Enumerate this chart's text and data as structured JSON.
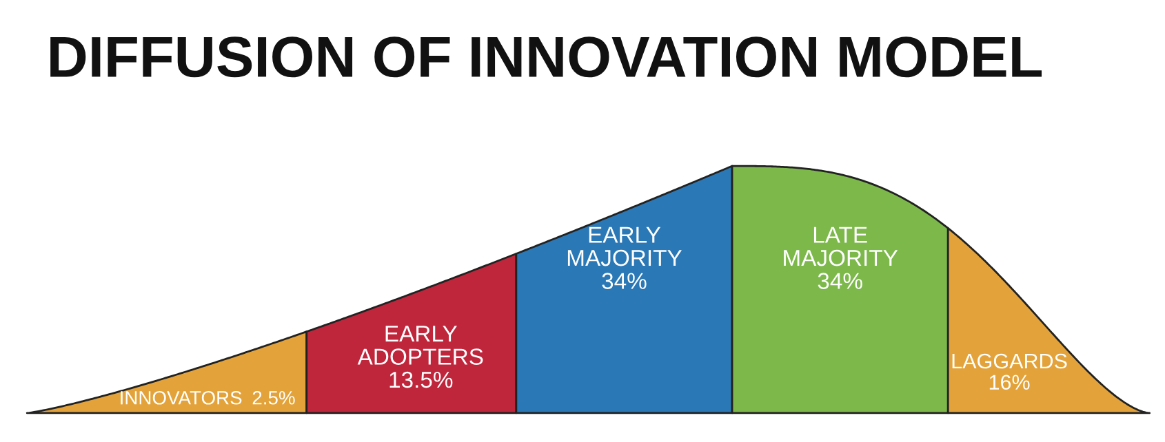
{
  "chart_data": {
    "type": "other",
    "title": "DIFFUSION OF INNOVATION MODEL",
    "categories": [
      "INNOVATORS",
      "EARLY\nADOPTERS",
      "EARLY\nMAJORITY",
      "LATE\nMAJORITY",
      "LAGGARDS"
    ],
    "values": [
      2.5,
      13.5,
      34,
      34,
      16
    ],
    "value_labels": [
      "2.5%",
      "13.5%",
      "34%",
      "34%",
      "16%"
    ],
    "colors": [
      "#e3a33a",
      "#c0263b",
      "#2b78b6",
      "#7cb84a",
      "#e3a33a"
    ]
  }
}
